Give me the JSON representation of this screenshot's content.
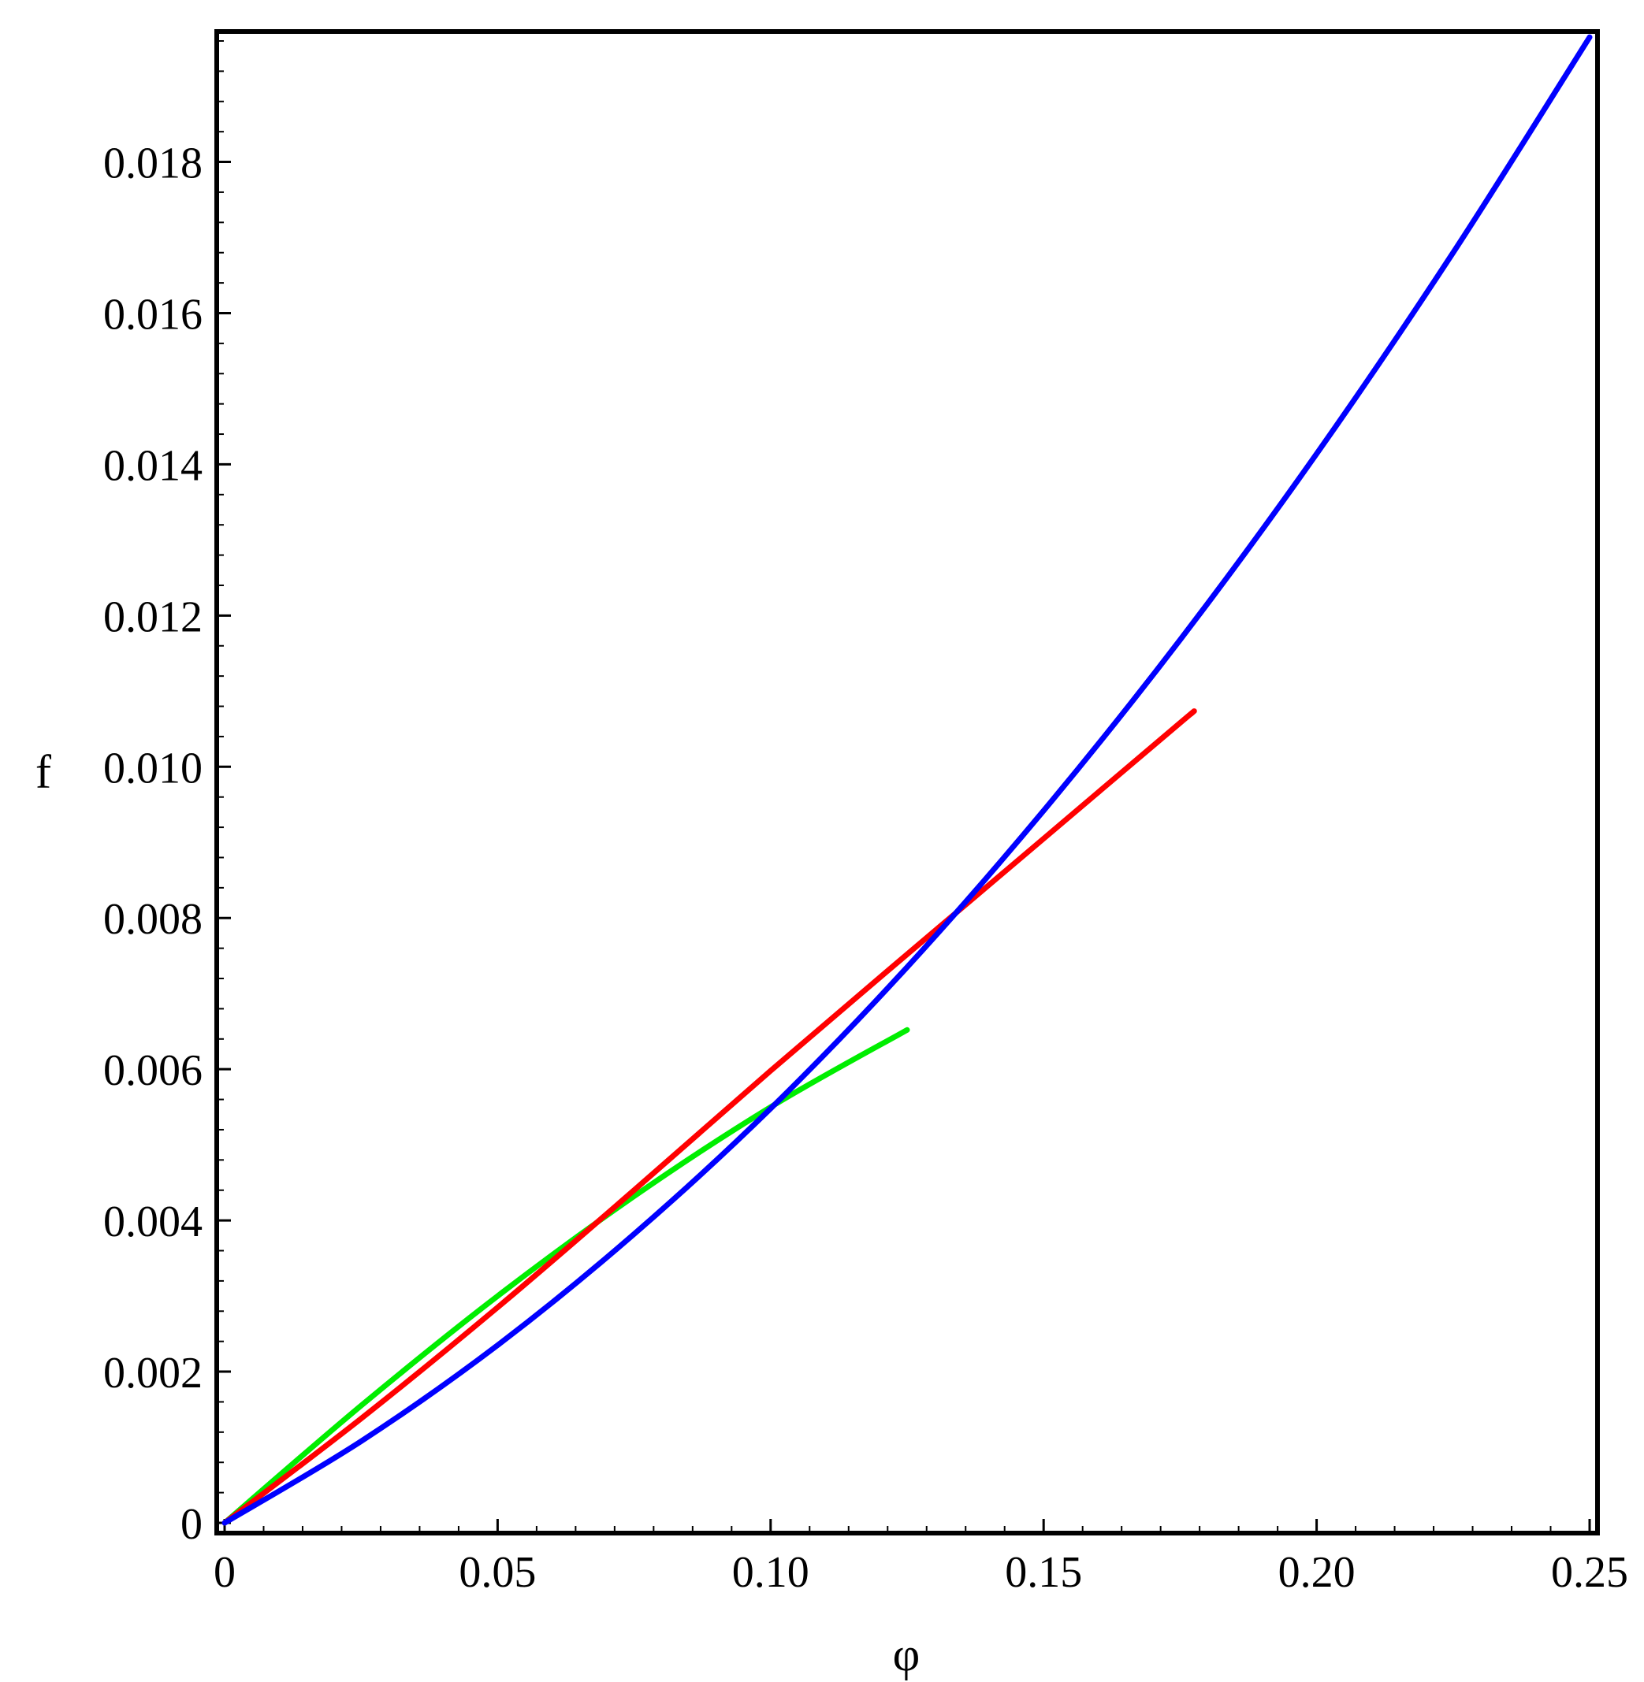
{
  "chart_data": {
    "type": "line",
    "title": "",
    "xlabel": "φ",
    "ylabel": "f",
    "xlim": [
      0,
      0.25
    ],
    "ylim": [
      0,
      0.0196
    ],
    "xticks": [
      {
        "value": 0,
        "label": "0"
      },
      {
        "value": 0.05,
        "label": "0.05"
      },
      {
        "value": 0.1,
        "label": "0.10"
      },
      {
        "value": 0.15,
        "label": "0.15"
      },
      {
        "value": 0.2,
        "label": "0.20"
      },
      {
        "value": 0.25,
        "label": "0.25"
      }
    ],
    "yticks": [
      {
        "value": 0,
        "label": "0"
      },
      {
        "value": 0.002,
        "label": "0.002"
      },
      {
        "value": 0.004,
        "label": "0.004"
      },
      {
        "value": 0.006,
        "label": "0.006"
      },
      {
        "value": 0.008,
        "label": "0.008"
      },
      {
        "value": 0.01,
        "label": "0.010"
      },
      {
        "value": 0.012,
        "label": "0.012"
      },
      {
        "value": 0.014,
        "label": "0.014"
      },
      {
        "value": 0.016,
        "label": "0.016"
      },
      {
        "value": 0.018,
        "label": "0.018"
      }
    ],
    "grid": false,
    "legend": "none",
    "series": [
      {
        "color": "#0000ff",
        "x": [
          0,
          0.025,
          0.05,
          0.075,
          0.1,
          0.125,
          0.15,
          0.175,
          0.2,
          0.225,
          0.25
        ],
        "y": [
          0,
          0.00108,
          0.00235,
          0.00382,
          0.00548,
          0.00735,
          0.00942,
          0.01168,
          0.01414,
          0.0168,
          0.01965
        ]
      },
      {
        "color": "#ff0000",
        "x": [
          0,
          0.025,
          0.05,
          0.075,
          0.1,
          0.125,
          0.15,
          0.175,
          0.177
        ],
        "y": [
          0,
          0.00138,
          0.00285,
          0.0044,
          0.00598,
          0.00752,
          0.00905,
          0.01058,
          0.0107
        ]
      },
      {
        "color": "#00ee00",
        "x": [
          0,
          0.025,
          0.05,
          0.075,
          0.1,
          0.125
        ],
        "y": [
          0,
          0.00155,
          0.003,
          0.00432,
          0.0055,
          0.00652
        ]
      }
    ]
  }
}
